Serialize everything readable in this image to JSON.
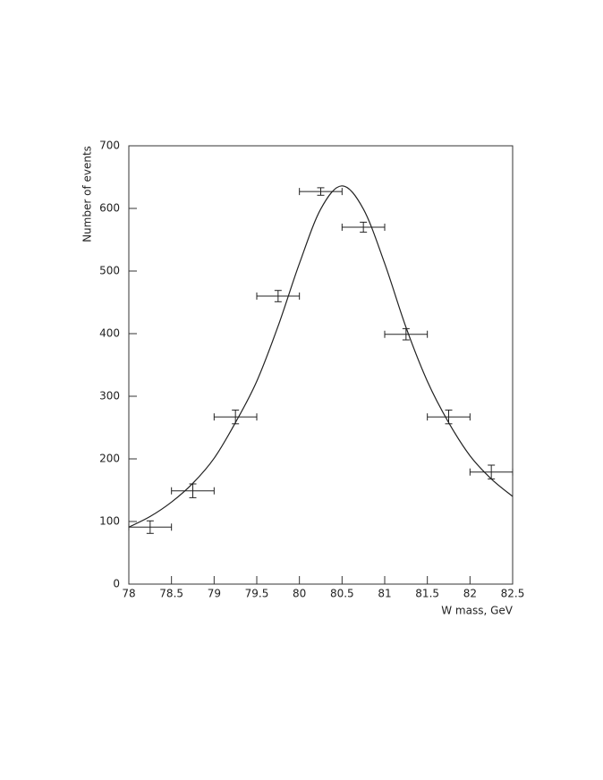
{
  "chart_data": {
    "type": "scatter",
    "x_label": "W mass, GeV",
    "y_label": "Number of events",
    "xlim": [
      78,
      82.5
    ],
    "ylim": [
      0,
      700
    ],
    "xticks": [
      78,
      78.5,
      79,
      79.5,
      80,
      80.5,
      81,
      81.5,
      82,
      82.5
    ],
    "yticks": [
      0,
      100,
      200,
      300,
      400,
      500,
      600,
      700
    ],
    "grid": false,
    "series": [
      {
        "color": "#222222",
        "x": [
          78.25,
          78.75,
          79.25,
          79.75,
          80.25,
          80.75,
          81.25,
          81.75,
          82.25
        ],
        "values": [
          91,
          149,
          267,
          460,
          627,
          570,
          399,
          267,
          179
        ],
        "yerr": [
          10,
          11,
          11,
          9,
          6,
          8,
          9,
          11,
          11
        ],
        "xerr": [
          0.25,
          0.25,
          0.25,
          0.25,
          0.25,
          0.25,
          0.25,
          0.25,
          0.25
        ]
      }
    ],
    "fit": {
      "type": "line",
      "color": "#222222",
      "x": [
        78,
        78.25,
        78.5,
        78.75,
        79,
        79.25,
        79.5,
        79.75,
        80,
        80.25,
        80.5,
        80.75,
        81,
        81.25,
        81.5,
        81.75,
        82,
        82.25,
        82.5
      ],
      "values": [
        91,
        108,
        131,
        161,
        201,
        258,
        324,
        412,
        512,
        599,
        636,
        599,
        512,
        410,
        324,
        258,
        205,
        168,
        140
      ]
    }
  }
}
